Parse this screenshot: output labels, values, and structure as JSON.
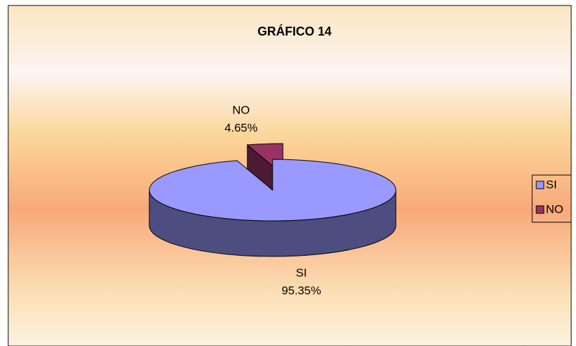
{
  "chart_data": {
    "type": "pie",
    "title": "GRÁFICO 14",
    "categories": [
      "SI",
      "NO"
    ],
    "values": [
      95.35,
      4.65
    ],
    "value_labels": [
      "95.35%",
      "4.65%"
    ],
    "colors": [
      "#9999ff",
      "#993366"
    ],
    "legend": "right"
  }
}
